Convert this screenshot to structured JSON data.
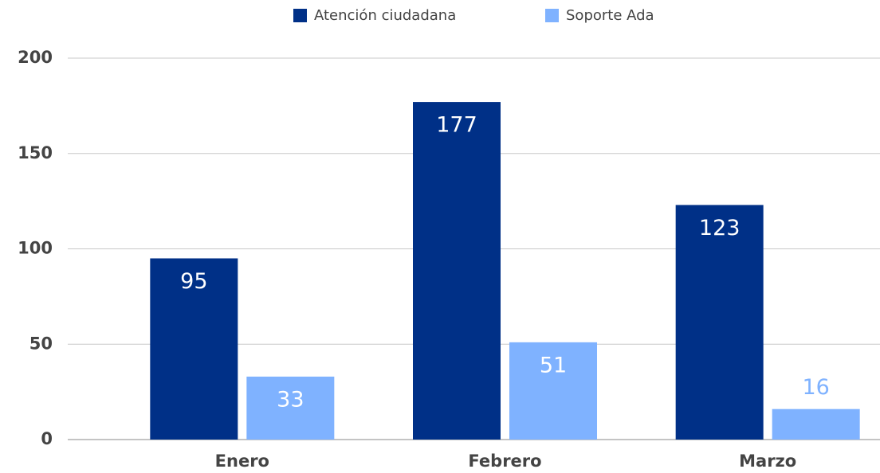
{
  "chart_data": {
    "type": "bar",
    "categories": [
      "Enero",
      "Febrero",
      "Marzo"
    ],
    "series": [
      {
        "name": "Atención ciudadana",
        "color": "#003087",
        "values": [
          95,
          177,
          123
        ]
      },
      {
        "name": "Soporte Ada",
        "color": "#7fb2ff",
        "values": [
          33,
          51,
          16
        ]
      }
    ],
    "ylim": [
      0,
      200
    ],
    "yticks": [
      0,
      50,
      100,
      150,
      200
    ],
    "grid": true,
    "legend": "top"
  }
}
